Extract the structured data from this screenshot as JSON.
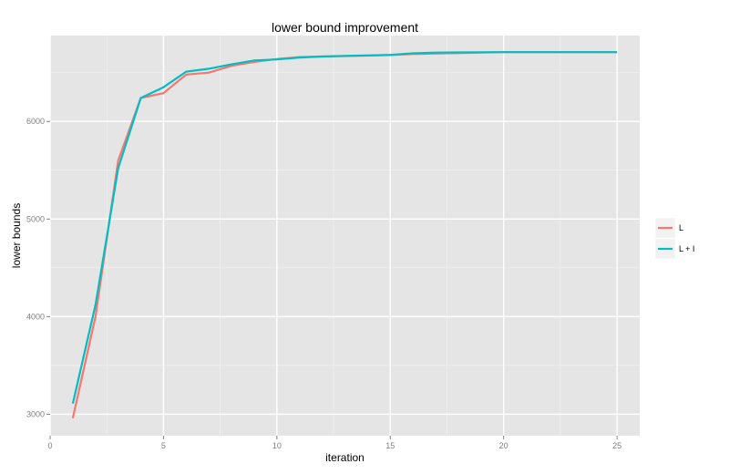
{
  "chart_data": {
    "type": "line",
    "title": "lower bound improvement",
    "xlabel": "iteration",
    "ylabel": "lower bounds",
    "xlim": [
      0,
      26
    ],
    "ylim": [
      2780,
      6880
    ],
    "x_ticks": [
      0,
      5,
      10,
      15,
      20,
      25
    ],
    "y_ticks": [
      3000,
      4000,
      5000,
      6000
    ],
    "grid": true,
    "legend_position": "right",
    "series": [
      {
        "name": "L",
        "color": "#F8766D",
        "x": [
          1,
          2,
          3,
          4,
          5,
          6,
          7,
          8,
          9,
          10,
          11,
          12,
          13,
          14,
          15,
          16,
          17,
          18,
          19,
          20,
          21,
          22,
          23,
          24,
          25
        ],
        "values": [
          2960,
          4000,
          5600,
          6240,
          6290,
          6480,
          6500,
          6570,
          6610,
          6640,
          6660,
          6665,
          6670,
          6675,
          6680,
          6690,
          6695,
          6700,
          6705,
          6710,
          6710,
          6710,
          6710,
          6710,
          6710
        ]
      },
      {
        "name": "L + I",
        "color": "#00BFC4",
        "x": [
          1,
          2,
          3,
          4,
          5,
          6,
          7,
          8,
          9,
          10,
          11,
          12,
          13,
          14,
          15,
          16,
          17,
          18,
          19,
          20,
          21,
          22,
          23,
          24,
          25
        ],
        "values": [
          3110,
          4120,
          5520,
          6240,
          6350,
          6510,
          6540,
          6585,
          6625,
          6635,
          6655,
          6665,
          6672,
          6676,
          6682,
          6698,
          6705,
          6707,
          6708,
          6710,
          6710,
          6710,
          6710,
          6710,
          6710
        ]
      }
    ]
  }
}
